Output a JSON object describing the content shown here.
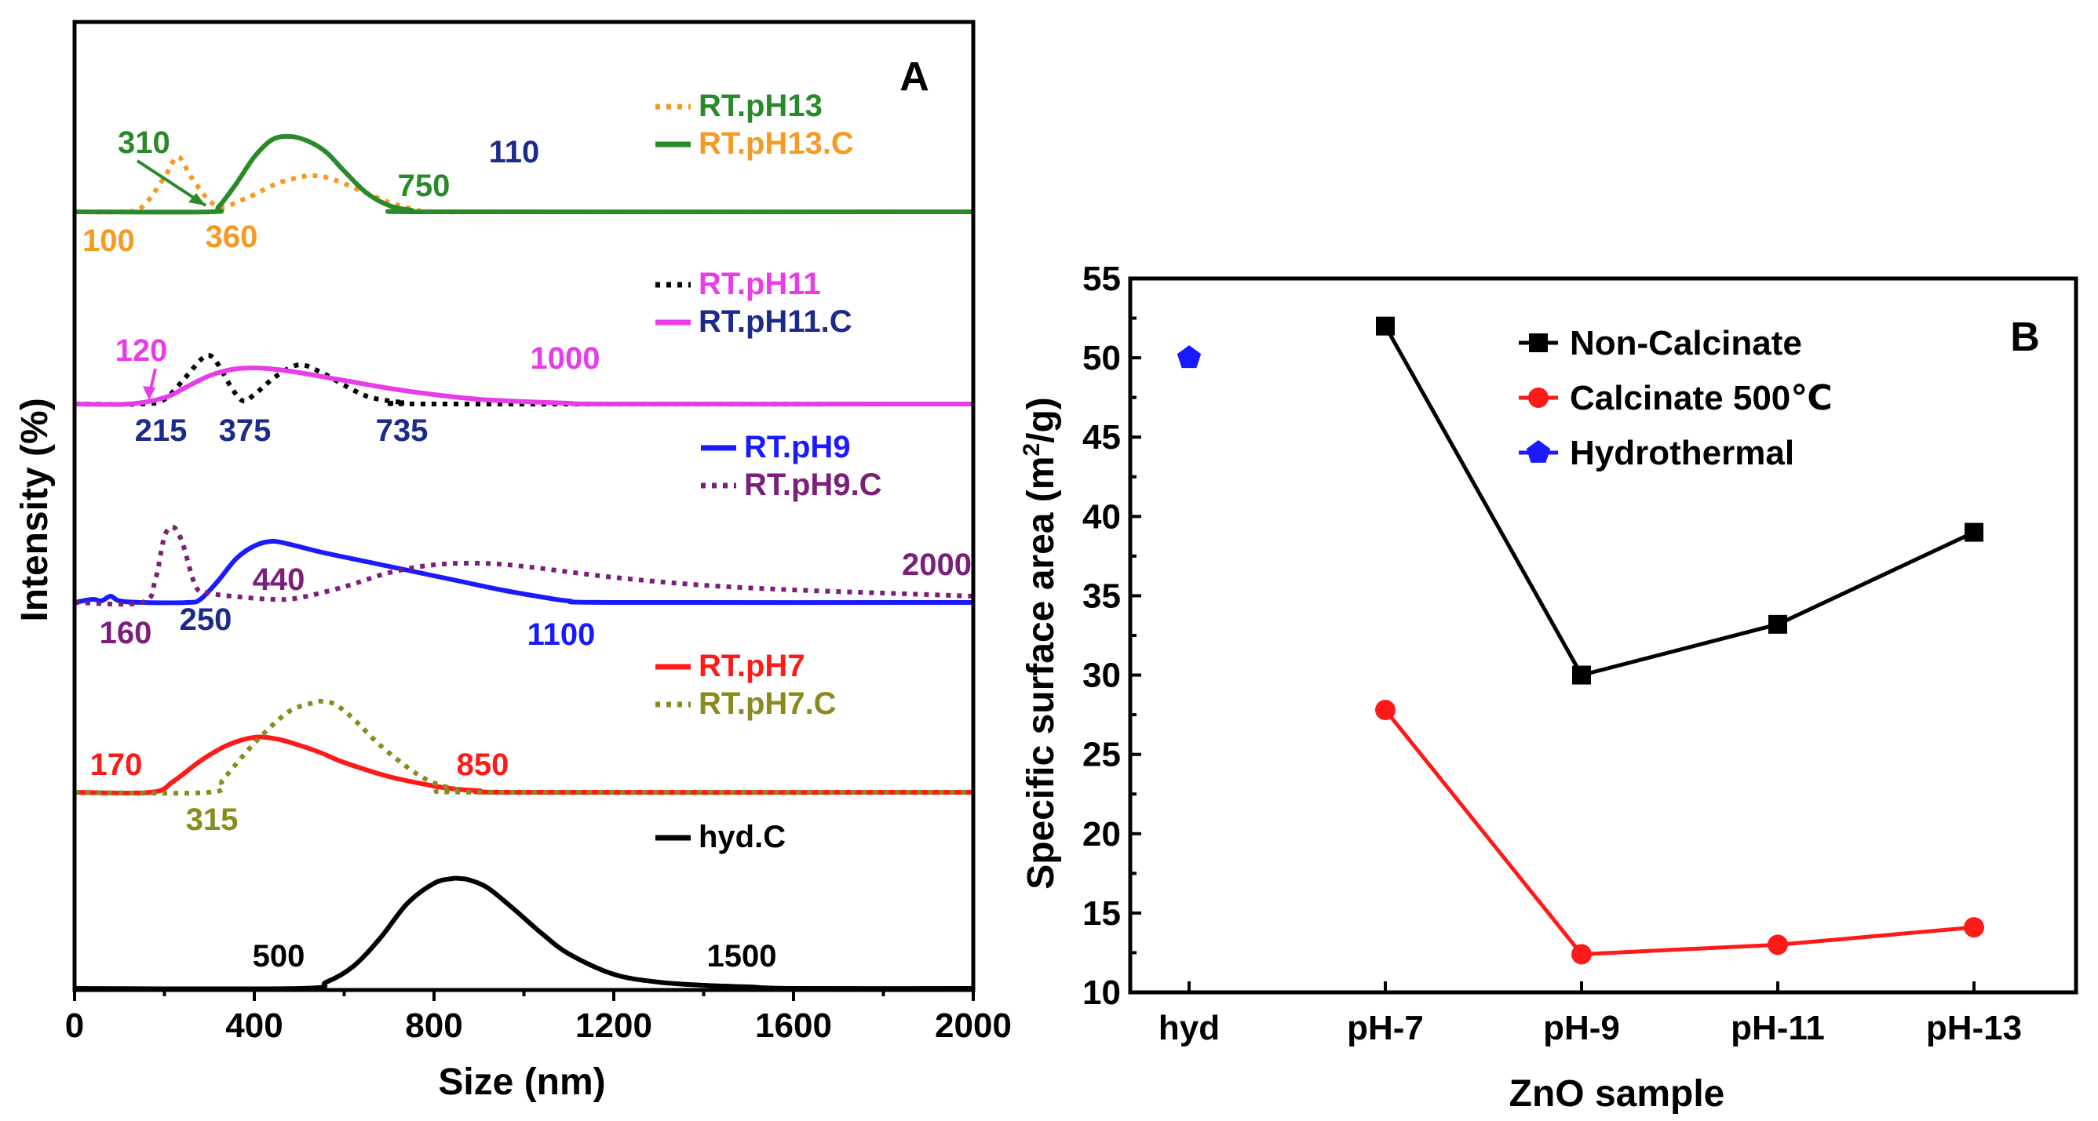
{
  "chart_data": [
    {
      "panel": "A",
      "type": "line",
      "xlabel": "Size (nm)",
      "ylabel": "Intensity (%)",
      "xlim": [
        0,
        2000
      ],
      "xticks": [
        "0",
        "400",
        "800",
        "1200",
        "1600",
        "2000"
      ],
      "groups": [
        {
          "name": "pH13",
          "legend": [
            {
              "label": "RT.pH13",
              "line_color": "#f59a22",
              "text_color": "#2a8a2a",
              "dash": true
            },
            {
              "label": "RT.pH13.C",
              "line_color": "#2a8a2a",
              "text_color": "#f59a22",
              "dash": false
            }
          ],
          "series": [
            {
              "name": "RT.pH13",
              "color": "#f59a22",
              "dash": true,
              "x": [
                0,
                100,
                150,
                200,
                230,
                260,
                300,
                330,
                360,
                400,
                450,
                500,
                530,
                560,
                600,
                650,
                700,
                750,
                800,
                1000,
                2000
              ],
              "y": [
                0,
                0,
                3,
                22,
                35,
                22,
                7,
                3,
                6,
                11,
                18,
                22,
                23,
                22,
                18,
                12,
                6,
                2,
                0,
                0,
                0
              ]
            },
            {
              "name": "RT.pH13.C",
              "color": "#2a8a2a",
              "dash": false,
              "x": [
                0,
                300,
                320,
                360,
                400,
                440,
                480,
                520,
                560,
                600,
                650,
                700,
                750,
                800,
                2000
              ],
              "y": [
                0,
                0,
                3,
                18,
                35,
                46,
                48,
                45,
                38,
                26,
                12,
                4,
                1,
                0,
                0
              ]
            }
          ],
          "annotations": [
            {
              "text": "310",
              "x": 310,
              "color": "#2a8a2a"
            },
            {
              "text": "100",
              "x": 100,
              "color": "#f59a22"
            },
            {
              "text": "360",
              "x": 360,
              "color": "#f59a22"
            },
            {
              "text": "750",
              "x": 750,
              "color": "#2a8a2a"
            },
            {
              "text": "110",
              "x": 1000,
              "color": "#1c2a8c"
            }
          ]
        },
        {
          "name": "pH11",
          "legend": [
            {
              "label": "RT.pH11",
              "line_color": "#000000",
              "text_color": "#e83ce8",
              "dash": true
            },
            {
              "label": "RT.pH11.C",
              "line_color": "#e83ce8",
              "text_color": "#1c2a8c",
              "dash": false
            }
          ],
          "series": [
            {
              "name": "RT.pH11",
              "color": "#000000",
              "dash": true,
              "x": [
                0,
                150,
                200,
                250,
                280,
                300,
                320,
                350,
                375,
                400,
                450,
                500,
                550,
                600,
                650,
                700,
                735,
                800,
                2000
              ],
              "y": [
                0,
                0,
                3,
                18,
                28,
                31,
                25,
                10,
                2,
                6,
                18,
                25,
                20,
                12,
                5,
                2,
                1,
                0,
                0
              ]
            },
            {
              "name": "RT.pH11.C",
              "color": "#e83ce8",
              "dash": false,
              "x": [
                0,
                120,
                200,
                250,
                300,
                350,
                400,
                450,
                500,
                600,
                700,
                800,
                900,
                1000,
                1100,
                1200,
                2000
              ],
              "y": [
                0,
                0,
                4,
                11,
                18,
                22,
                23,
                22,
                20,
                15,
                10,
                6,
                3,
                1.5,
                0.5,
                0,
                0
              ]
            }
          ],
          "annotations": [
            {
              "text": "120",
              "x": 120,
              "color": "#e83ce8"
            },
            {
              "text": "215",
              "x": 215,
              "color": "#1c2a8c"
            },
            {
              "text": "375",
              "x": 375,
              "color": "#1c2a8c"
            },
            {
              "text": "735",
              "x": 735,
              "color": "#1c2a8c"
            },
            {
              "text": "1000",
              "x": 1000,
              "color": "#e83ce8"
            }
          ]
        },
        {
          "name": "pH9",
          "legend": [
            {
              "label": "RT.pH9",
              "line_color": "#1a1aff",
              "text_color": "#1a1aff",
              "dash": false
            },
            {
              "label": "RT.pH9.C",
              "line_color": "#7a1f7a",
              "text_color": "#7a1f7a",
              "dash": true
            }
          ],
          "series": [
            {
              "name": "RT.pH9",
              "color": "#1a1aff",
              "dash": false,
              "x": [
                0,
                40,
                60,
                80,
                100,
                150,
                250,
                280,
                320,
                360,
                400,
                440,
                480,
                550,
                650,
                750,
                850,
                950,
                1050,
                1100,
                1200,
                2000
              ],
              "y": [
                0,
                2,
                1,
                4,
                1,
                0,
                0,
                2,
                14,
                28,
                36,
                39,
                37,
                32,
                26,
                20,
                14,
                8,
                3,
                1,
                0,
                0
              ]
            },
            {
              "name": "RT.pH9.C",
              "color": "#7a1f7a",
              "dash": true,
              "x": [
                0,
                150,
                180,
                200,
                220,
                240,
                270,
                300,
                350,
                440,
                500,
                600,
                700,
                800,
                900,
                1000,
                1200,
                1400,
                1600,
                1800,
                2000
              ],
              "y": [
                0,
                0,
                15,
                42,
                48,
                38,
                10,
                6,
                4,
                2,
                3,
                10,
                19,
                24,
                25,
                23,
                16,
                11,
                8,
                6,
                4
              ]
            }
          ],
          "annotations": [
            {
              "text": "160",
              "x": 160,
              "color": "#7a1f7a"
            },
            {
              "text": "250",
              "x": 250,
              "color": "#1c2a8c"
            },
            {
              "text": "440",
              "x": 440,
              "color": "#7a1f7a"
            },
            {
              "text": "1100",
              "x": 1100,
              "color": "#1a1aff"
            },
            {
              "text": "2000",
              "x": 2000,
              "color": "#7a1f7a"
            }
          ]
        },
        {
          "name": "pH7",
          "legend": [
            {
              "label": "RT.pH7",
              "line_color": "#ff1a1a",
              "text_color": "#ff1a1a",
              "dash": false
            },
            {
              "label": "RT.pH7.C",
              "line_color": "#8a8a1f",
              "text_color": "#8a8a1f",
              "dash": true
            }
          ],
          "series": [
            {
              "name": "RT.pH7",
              "color": "#ff1a1a",
              "dash": false,
              "x": [
                0,
                170,
                220,
                280,
                340,
                400,
                450,
                500,
                550,
                600,
                700,
                800,
                850,
                900,
                1000,
                2000
              ],
              "y": [
                0,
                0,
                7,
                20,
                30,
                35,
                34,
                30,
                25,
                19,
                10,
                4,
                2,
                1,
                0,
                0
              ]
            },
            {
              "name": "RT.pH7.C",
              "color": "#8a8a1f",
              "dash": true,
              "x": [
                0,
                300,
                330,
                380,
                430,
                480,
                530,
                550,
                580,
                620,
                680,
                750,
                800,
                850,
                900,
                2000
              ],
              "y": [
                0,
                0,
                8,
                25,
                40,
                52,
                57,
                58,
                56,
                47,
                30,
                14,
                6,
                2,
                0,
                0
              ]
            }
          ],
          "annotations": [
            {
              "text": "170",
              "x": 170,
              "color": "#ff1a1a"
            },
            {
              "text": "315",
              "x": 315,
              "color": "#8a8a1f"
            },
            {
              "text": "850",
              "x": 850,
              "color": "#ff1a1a"
            }
          ]
        },
        {
          "name": "hyd",
          "legend": [
            {
              "label": "hyd.C",
              "line_color": "#000000",
              "text_color": "#000000",
              "dash": false
            }
          ],
          "series": [
            {
              "name": "hyd.C",
              "color": "#000000",
              "dash": false,
              "x": [
                0,
                500,
                560,
                620,
                680,
                740,
                800,
                840,
                860,
                880,
                920,
                980,
                1040,
                1100,
                1200,
                1300,
                1400,
                1500,
                1600,
                2000
              ],
              "y": [
                0,
                0,
                4,
                14,
                32,
                54,
                67,
                70,
                70,
                69,
                64,
                50,
                35,
                22,
                9,
                4,
                2,
                1,
                0,
                0
              ]
            }
          ],
          "annotations": [
            {
              "text": "500",
              "x": 500,
              "color": "#000000"
            },
            {
              "text": "1500",
              "x": 1500,
              "color": "#000000"
            }
          ]
        }
      ]
    },
    {
      "panel": "B",
      "type": "line",
      "xlabel": "ZnO sample",
      "ylabel": "Specific surface area (m²/g)",
      "ylabel_main": "Specific surface area (m",
      "ylabel_sup": "2",
      "ylabel_tail": "/g)",
      "categories": [
        "hyd",
        "pH-7",
        "pH-9",
        "pH-11",
        "pH-13"
      ],
      "ylim": [
        10,
        55
      ],
      "yticks": [
        "10",
        "15",
        "20",
        "25",
        "30",
        "35",
        "40",
        "45",
        "50",
        "55"
      ],
      "legend_position": "top-center",
      "series": [
        {
          "name": "Non-Calcinate",
          "color": "#000000",
          "marker": "square",
          "values": [
            null,
            52,
            30,
            33.2,
            39
          ]
        },
        {
          "name": "Calcinate 500℃",
          "color": "#ff1a1a",
          "marker": "circle",
          "values": [
            null,
            27.8,
            12.4,
            13,
            14.1
          ]
        },
        {
          "name": "Hydrothermal",
          "color": "#1a1aff",
          "marker": "pentagon",
          "values": [
            50,
            null,
            null,
            null,
            null
          ]
        }
      ]
    }
  ]
}
